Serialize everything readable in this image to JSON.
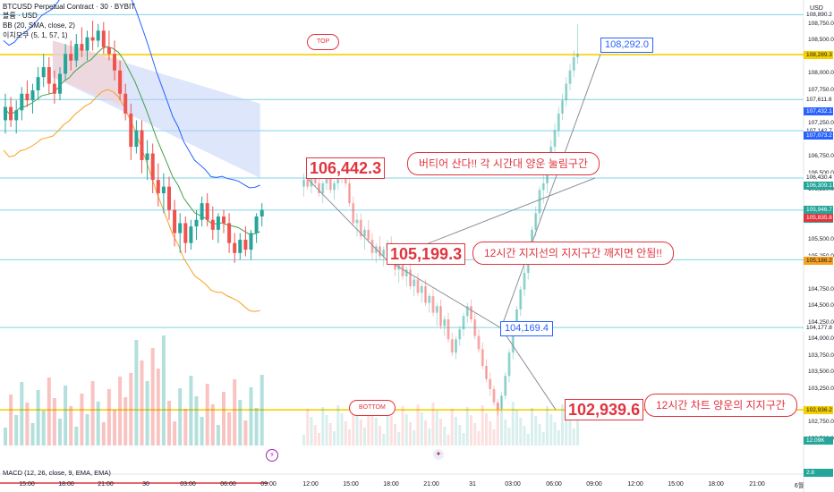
{
  "legend": {
    "symbol": "BTCUSD Perpetual Contract · 30 · BYBIT",
    "unit": "볼륨 · USD",
    "bb": "BB (20, SMA, close, 2)",
    "ichimoku": "이치모쿠 (5, 1, 57, 1)"
  },
  "macd_label": "MACD (12, 26, close, 9, EMA, EMA)",
  "price_axis": {
    "unit": "USD",
    "ticks": [
      "108,750.0",
      "108,500.0",
      "108,000.0",
      "107,750.0",
      "107,250.0",
      "106,750.0",
      "106,500.0",
      "106,250.0",
      "105,500.0",
      "105,250.0",
      "104,750.0",
      "104,500.0",
      "104,250.0",
      "104,000.0",
      "103,750.0",
      "103,500.0",
      "103,250.0",
      "102,750.0",
      "102,500.0"
    ],
    "tags": [
      {
        "text": "108,890.2",
        "color": "#ffffff",
        "text_color": "#131722"
      },
      {
        "text": "108,289.3",
        "color": "#f5d000",
        "text_color": "#131722"
      },
      {
        "text": "107,611.8",
        "color": "#ffffff",
        "text_color": "#131722"
      },
      {
        "text": "107,432.1",
        "color": "#2962ff",
        "text_color": "#ffffff"
      },
      {
        "text": "107,142.7",
        "color": "#ffffff",
        "text_color": "#131722"
      },
      {
        "text": "107,073.2",
        "color": "#2962ff",
        "text_color": "#ffffff"
      },
      {
        "text": "106,430.4",
        "color": "#ffffff",
        "text_color": "#131722"
      },
      {
        "text": "106,309.1",
        "color": "#26a69a",
        "text_color": "#ffffff"
      },
      {
        "text": "105,946.7",
        "color": "#26a69a",
        "text_color": "#ffffff"
      },
      {
        "text": "01:03",
        "color": "#26a69a",
        "text_color": "#ffffff"
      },
      {
        "text": "105,835.8",
        "color": "#e0343f",
        "text_color": "#ffffff"
      },
      {
        "text": "105,197.7",
        "color": "#ffffff",
        "text_color": "#131722"
      },
      {
        "text": "105,186.2",
        "color": "#f7a021",
        "text_color": "#131722"
      },
      {
        "text": "104,177.8",
        "color": "#ffffff",
        "text_color": "#131722"
      },
      {
        "text": "102,936.2",
        "color": "#f5d000",
        "text_color": "#131722"
      },
      {
        "text": "12.09K",
        "color": "#26a69a",
        "text_color": "#ffffff"
      },
      {
        "text": "2.8",
        "color": "#26a69a",
        "text_color": "#ffffff"
      }
    ]
  },
  "time_axis": [
    "15:00",
    "18:00",
    "21:00",
    "30",
    "03:00",
    "06:00",
    "09:00",
    "12:00",
    "15:00",
    "18:00",
    "21:00",
    "31",
    "03:00",
    "06:00",
    "09:00",
    "12:00",
    "15:00",
    "18:00",
    "21:00",
    "6월"
  ],
  "annotations": {
    "top": "TOP",
    "bottom": "BOTTOM",
    "p1": "106,442.3",
    "p1_note": "버티어 산다!! 각 시간대 양운 눌림구간",
    "p2": "105,199.3",
    "p2_note": "12시간 지지선의 지지구간 깨지면 안됨!!",
    "p3": "102,939.6",
    "p3_note": "12시간 차트 양운의 지지구간",
    "blue_top": "108,292.0",
    "blue_mid": "104,169.4"
  },
  "colors": {
    "up": "#26a69a",
    "down": "#ef5350",
    "bb_upper": "#2962ff",
    "bb_basis": "#43a047",
    "bb_lower": "#f7a021",
    "yellow_line": "#f5d000",
    "cyan_line": "#7fd3e6",
    "annotation": "#e0343f"
  },
  "chart_data": {
    "type": "candlestick",
    "price_range": [
      102400,
      108950
    ],
    "horizontal_levels": [
      108890.2,
      108289.3,
      107611.8,
      107142.7,
      106430.4,
      105946.7,
      105197.7,
      104177.8,
      102936.2
    ],
    "real_candles": [
      [
        107300,
        107700,
        107100,
        107500
      ],
      [
        107500,
        107650,
        107200,
        107300
      ],
      [
        107300,
        107600,
        107100,
        107450
      ],
      [
        107450,
        107800,
        107300,
        107700
      ],
      [
        107700,
        107900,
        107500,
        107600
      ],
      [
        107600,
        107850,
        107400,
        107750
      ],
      [
        107750,
        108100,
        107600,
        107950
      ],
      [
        107950,
        108300,
        107800,
        108100
      ],
      [
        108100,
        108250,
        107700,
        107850
      ],
      [
        107850,
        108050,
        107550,
        107700
      ],
      [
        107700,
        108100,
        107600,
        108000
      ],
      [
        108000,
        108450,
        107900,
        108300
      ],
      [
        108300,
        108500,
        108050,
        108200
      ],
      [
        108200,
        108600,
        108100,
        108450
      ],
      [
        108450,
        108700,
        108250,
        108350
      ],
      [
        108350,
        108650,
        108200,
        108550
      ],
      [
        108550,
        108800,
        108350,
        108500
      ],
      [
        108500,
        108750,
        108400,
        108650
      ],
      [
        108650,
        108780,
        108300,
        108400
      ],
      [
        108400,
        108650,
        108200,
        108300
      ],
      [
        108300,
        108500,
        107900,
        108050
      ],
      [
        108050,
        108200,
        107600,
        107700
      ],
      [
        107700,
        107850,
        107300,
        107400
      ],
      [
        107400,
        107550,
        106700,
        106900
      ],
      [
        106900,
        107300,
        106800,
        107150
      ],
      [
        107150,
        107300,
        106500,
        106700
      ],
      [
        106700,
        107000,
        106400,
        106800
      ],
      [
        106800,
        106950,
        106200,
        106400
      ],
      [
        106400,
        106650,
        106000,
        106200
      ],
      [
        106200,
        106500,
        105900,
        106300
      ],
      [
        106300,
        106450,
        105800,
        105950
      ],
      [
        105950,
        106100,
        105400,
        105600
      ],
      [
        105600,
        105900,
        105300,
        105750
      ],
      [
        105750,
        105850,
        105300,
        105450
      ],
      [
        105450,
        105800,
        105350,
        105700
      ],
      [
        105700,
        105950,
        105500,
        105800
      ],
      [
        105800,
        106150,
        105700,
        106050
      ],
      [
        106050,
        106200,
        105700,
        105800
      ],
      [
        105800,
        106000,
        105500,
        105650
      ],
      [
        105650,
        105900,
        105450,
        105850
      ],
      [
        105850,
        105950,
        105600,
        105750
      ],
      [
        105750,
        105900,
        105300,
        105450
      ],
      [
        105450,
        105600,
        105150,
        105300
      ],
      [
        105300,
        105600,
        105200,
        105500
      ],
      [
        105500,
        105700,
        105250,
        105350
      ],
      [
        105350,
        105650,
        105200,
        105600
      ],
      [
        105600,
        105900,
        105450,
        105850
      ],
      [
        105850,
        106050,
        105700,
        105950
      ]
    ],
    "projection_candles": [
      [
        106300,
        106500,
        106150,
        106400
      ],
      [
        106400,
        106550,
        106250,
        106300
      ],
      [
        106300,
        106500,
        106200,
        106450
      ],
      [
        106450,
        106600,
        106300,
        106350
      ],
      [
        106350,
        106500,
        106150,
        106200
      ],
      [
        106200,
        106400,
        106050,
        106350
      ],
      [
        106350,
        106550,
        106250,
        106450
      ],
      [
        106450,
        106550,
        106200,
        106250
      ],
      [
        106250,
        106400,
        106100,
        106350
      ],
      [
        106350,
        106500,
        106250,
        106450
      ],
      [
        106450,
        106650,
        106350,
        106550
      ],
      [
        106550,
        106600,
        106300,
        106350
      ],
      [
        106350,
        106450,
        106000,
        106050
      ],
      [
        106050,
        106150,
        105700,
        105750
      ],
      [
        105750,
        105900,
        105550,
        105800
      ],
      [
        105800,
        105900,
        105500,
        105550
      ],
      [
        105550,
        105700,
        105350,
        105650
      ],
      [
        105650,
        105800,
        105450,
        105500
      ],
      [
        105500,
        105600,
        105200,
        105300
      ],
      [
        105300,
        105450,
        105150,
        105400
      ],
      [
        105400,
        105550,
        105200,
        105250
      ],
      [
        105250,
        105400,
        105100,
        105350
      ],
      [
        105350,
        105500,
        105200,
        105450
      ],
      [
        105450,
        105550,
        105150,
        105200
      ],
      [
        105200,
        105300,
        104950,
        105050
      ],
      [
        105050,
        105200,
        104850,
        105150
      ],
      [
        105150,
        105250,
        104900,
        104950
      ],
      [
        104950,
        105100,
        104800,
        105050
      ],
      [
        105050,
        105150,
        104750,
        104800
      ],
      [
        104800,
        104950,
        104650,
        104900
      ],
      [
        104900,
        105000,
        104650,
        104700
      ],
      [
        104700,
        104850,
        104550,
        104800
      ],
      [
        104800,
        104900,
        104500,
        104550
      ],
      [
        104550,
        104700,
        104400,
        104650
      ],
      [
        104650,
        104750,
        104350,
        104400
      ],
      [
        104400,
        104550,
        104200,
        104500
      ],
      [
        104500,
        104600,
        104150,
        104200
      ],
      [
        104200,
        104350,
        104050,
        104300
      ],
      [
        104300,
        104400,
        103950,
        104000
      ],
      [
        104000,
        104100,
        103750,
        103800
      ],
      [
        103800,
        104050,
        103700,
        104000
      ],
      [
        104000,
        104200,
        103900,
        104150
      ],
      [
        104150,
        104400,
        104050,
        104350
      ],
      [
        104350,
        104550,
        104250,
        104500
      ],
      [
        104500,
        104600,
        104250,
        104300
      ],
      [
        104300,
        104400,
        104000,
        104050
      ],
      [
        104050,
        104150,
        103800,
        103850
      ],
      [
        103850,
        103950,
        103550,
        103600
      ],
      [
        103600,
        103700,
        103350,
        103400
      ],
      [
        103400,
        103500,
        103150,
        103250
      ],
      [
        103250,
        103300,
        103000,
        103050
      ],
      [
        103050,
        103100,
        102850,
        102950
      ],
      [
        102950,
        103200,
        102900,
        103150
      ],
      [
        103150,
        103500,
        103100,
        103450
      ],
      [
        103450,
        103850,
        103350,
        103800
      ],
      [
        103800,
        104200,
        103700,
        104150
      ],
      [
        104150,
        104500,
        104050,
        104450
      ],
      [
        104450,
        104800,
        104350,
        104750
      ],
      [
        104750,
        105100,
        104650,
        105000
      ],
      [
        105000,
        105400,
        104900,
        105350
      ],
      [
        105350,
        105700,
        105250,
        105650
      ],
      [
        105650,
        106000,
        105550,
        105900
      ],
      [
        105900,
        106300,
        105800,
        106250
      ],
      [
        106250,
        106500,
        106050,
        106350
      ],
      [
        106350,
        106700,
        106200,
        106600
      ],
      [
        106600,
        107000,
        106500,
        106900
      ],
      [
        106900,
        107250,
        106800,
        107150
      ],
      [
        107150,
        107500,
        107050,
        107400
      ],
      [
        107400,
        107700,
        107300,
        107600
      ],
      [
        107600,
        107950,
        107500,
        107850
      ],
      [
        107850,
        108150,
        107750,
        108050
      ],
      [
        108050,
        108350,
        107950,
        108250
      ],
      [
        108250,
        108750,
        108150,
        108300
      ]
    ]
  }
}
